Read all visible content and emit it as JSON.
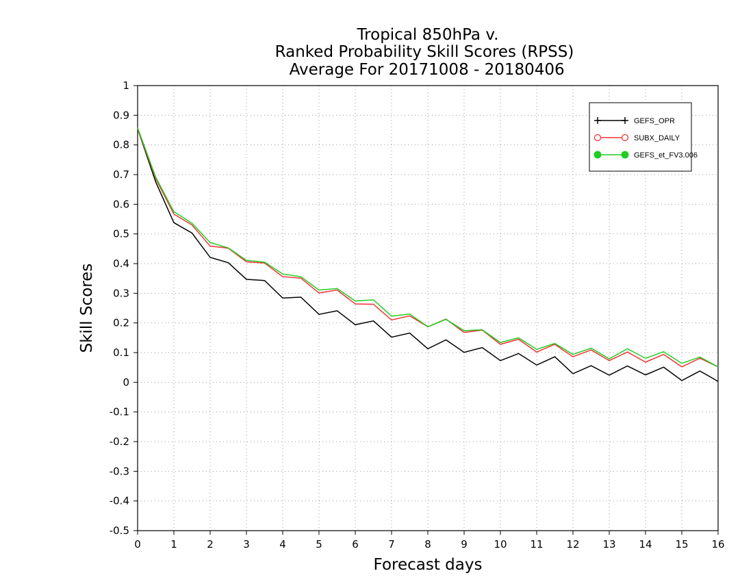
{
  "chart_data": {
    "type": "line",
    "title_lines": [
      "Tropical 850hPa v.",
      "Ranked Probability Skill Scores (RPSS)",
      " Average For 20171008 - 20180406"
    ],
    "xlabel": "Forecast days",
    "ylabel": "Skill Scores",
    "xlim": [
      0,
      16
    ],
    "ylim": [
      -0.5,
      1
    ],
    "xticks": [
      "0",
      "1",
      "2",
      "3",
      "4",
      "5",
      "6",
      "7",
      "8",
      "9",
      "10",
      "11",
      "12",
      "13",
      "14",
      "15",
      "16"
    ],
    "yticks": [
      "-0.5",
      "-0.4",
      "-0.3",
      "-0.2",
      "-0.1",
      "0",
      "0.1",
      "0.2",
      "0.3",
      "0.4",
      "0.5",
      "0.6",
      "0.7",
      "0.8",
      "0.9",
      "1"
    ],
    "grid": true,
    "legend_position": "top-right",
    "x": [
      0,
      0.5,
      1,
      1.5,
      2,
      2.5,
      3,
      3.5,
      4,
      4.5,
      5,
      5.5,
      6,
      6.5,
      7,
      7.5,
      8,
      8.5,
      9,
      9.5,
      10,
      10.5,
      11,
      11.5,
      12,
      12.5,
      13,
      13.5,
      14,
      14.5,
      15,
      15.5,
      16
    ],
    "series": [
      {
        "name": "GEFS_OPR",
        "color": "#000000",
        "marker": "plus",
        "values": [
          0.855,
          0.675,
          0.538,
          0.503,
          0.421,
          0.403,
          0.347,
          0.343,
          0.284,
          0.287,
          0.229,
          0.241,
          0.194,
          0.207,
          0.152,
          0.166,
          0.113,
          0.143,
          0.101,
          0.117,
          0.073,
          0.097,
          0.058,
          0.086,
          0.029,
          0.056,
          0.024,
          0.055,
          0.025,
          0.051,
          0.006,
          0.038,
          0.003
        ]
      },
      {
        "name": "SUBX_DAILY",
        "color": "#ee3333",
        "marker": "open-circle",
        "values": [
          0.855,
          0.686,
          0.567,
          0.53,
          0.459,
          0.452,
          0.406,
          0.402,
          0.356,
          0.351,
          0.301,
          0.311,
          0.264,
          0.263,
          0.21,
          0.224,
          0.187,
          0.213,
          0.168,
          0.176,
          0.128,
          0.145,
          0.102,
          0.128,
          0.086,
          0.109,
          0.073,
          0.102,
          0.068,
          0.094,
          0.052,
          0.081,
          0.052
        ]
      },
      {
        "name": "GEFS_et_FV3.006",
        "color": "#22cc22",
        "marker": "filled-circle",
        "values": [
          0.858,
          0.691,
          0.575,
          0.536,
          0.471,
          0.453,
          0.411,
          0.405,
          0.365,
          0.356,
          0.311,
          0.316,
          0.274,
          0.278,
          0.223,
          0.23,
          0.187,
          0.212,
          0.174,
          0.177,
          0.134,
          0.15,
          0.111,
          0.131,
          0.094,
          0.115,
          0.079,
          0.113,
          0.081,
          0.103,
          0.064,
          0.085,
          0.052
        ]
      }
    ]
  }
}
